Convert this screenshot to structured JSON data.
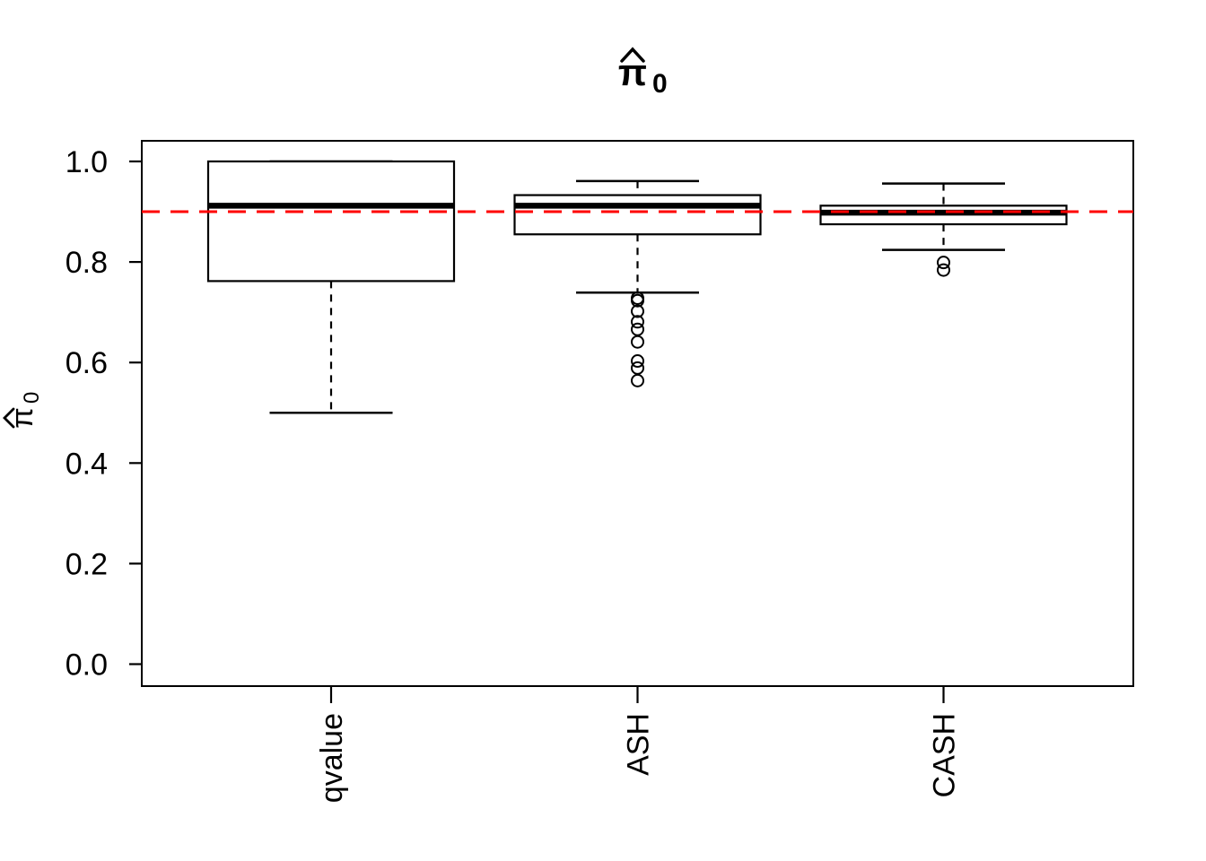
{
  "chart_data": {
    "type": "boxplot",
    "title": "π̂0",
    "title_parts": {
      "base": "π",
      "sub": "0",
      "hat": true,
      "bold": true
    },
    "ylabel": "π̂0",
    "ylabel_parts": {
      "base": "π",
      "sub": "0",
      "hat": true,
      "bold": false
    },
    "xlabel": "",
    "categories": [
      "qvalue",
      "ASH",
      "CASH"
    ],
    "ytick_labels": [
      "0.0",
      "0.2",
      "0.4",
      "0.6",
      "0.8",
      "1.0"
    ],
    "ytick_values": [
      0.0,
      0.2,
      0.4,
      0.6,
      0.8,
      1.0
    ],
    "ylim": [
      0.0,
      1.0
    ],
    "axis_padding_frac": 0.04,
    "grid": false,
    "legend": "none",
    "boxes": [
      {
        "label": "qvalue",
        "whisker_low": 0.5,
        "q1": 0.762,
        "median": 0.912,
        "q3": 1.0,
        "whisker_high": 1.0,
        "outliers": []
      },
      {
        "label": "ASH",
        "whisker_low": 0.739,
        "q1": 0.855,
        "median": 0.912,
        "q3": 0.933,
        "whisker_high": 0.961,
        "outliers": [
          0.728,
          0.723,
          0.702,
          0.681,
          0.666,
          0.641,
          0.603,
          0.589,
          0.564
        ]
      },
      {
        "label": "CASH",
        "whisker_low": 0.824,
        "q1": 0.875,
        "median": 0.898,
        "q3": 0.912,
        "whisker_high": 0.956,
        "outliers": [
          0.799,
          0.784
        ]
      }
    ],
    "reference_line": {
      "value": 0.9,
      "color": "#FF0000",
      "style": "dashed"
    },
    "colors": {
      "box_stroke": "#000000",
      "text": "#000000",
      "background": "#FFFFFF",
      "reference": "#FF0000"
    }
  }
}
